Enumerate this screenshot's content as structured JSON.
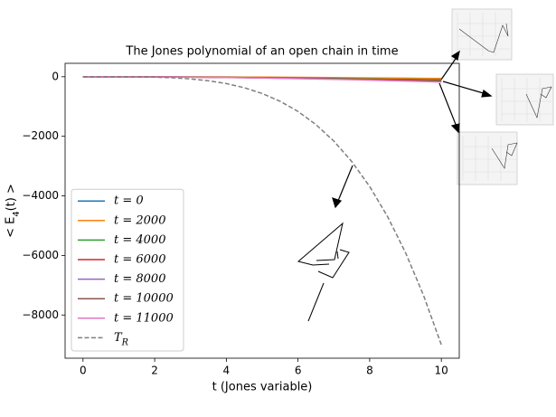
{
  "chart_data": {
    "type": "line",
    "title": "The Jones polynomial of an open chain in time",
    "x_label": "t (Jones variable)",
    "y_label": "< E_4(t) >",
    "x": [
      0,
      0.5,
      1,
      1.5,
      2,
      2.5,
      3,
      3.5,
      4,
      4.5,
      5,
      5.5,
      6,
      6.5,
      7,
      7.5,
      8,
      8.5,
      9,
      9.5,
      10
    ],
    "xlim": [
      -0.5,
      10.5
    ],
    "xticks": [
      0,
      2,
      4,
      6,
      8,
      10
    ],
    "ylim": [
      -9450,
      450
    ],
    "yticks": [
      0,
      {
        "value": -2000,
        "label": "−2000"
      },
      {
        "value": -4000,
        "label": "−4000"
      },
      {
        "value": -6000,
        "label": "−6000"
      },
      {
        "value": -8000,
        "label": "−8000"
      }
    ],
    "legend": "lower left",
    "series": [
      {
        "name": "t = 0",
        "color": "#1f77b4",
        "dashed": false,
        "values": [
          0,
          0,
          -1,
          -2,
          -4,
          -6,
          -9,
          -12,
          -16,
          -20,
          -25,
          -30,
          -36,
          -42,
          -49,
          -56,
          -64,
          -72,
          -81,
          -90,
          -100
        ]
      },
      {
        "name": "t = 2000",
        "color": "#ff7f0e",
        "dashed": false,
        "values": [
          0,
          0,
          -1,
          -1,
          -2,
          -4,
          -5,
          -7,
          -10,
          -12,
          -15,
          -18,
          -22,
          -25,
          -29,
          -34,
          -38,
          -43,
          -49,
          -54,
          -60
        ]
      },
      {
        "name": "t = 4000",
        "color": "#2ca02c",
        "dashed": false,
        "values": [
          0,
          0,
          -1,
          -3,
          -5,
          -8,
          -11,
          -15,
          -19,
          -24,
          -30,
          -36,
          -43,
          -51,
          -59,
          -68,
          -77,
          -87,
          -97,
          -108,
          -120
        ]
      },
      {
        "name": "t = 6000",
        "color": "#d62728",
        "dashed": false,
        "values": [
          0,
          0,
          -1,
          -3,
          -6,
          -9,
          -13,
          -17,
          -22,
          -28,
          -35,
          -42,
          -50,
          -59,
          -69,
          -79,
          -90,
          -101,
          -113,
          -126,
          -140
        ]
      },
      {
        "name": "t = 8000",
        "color": "#9467bd",
        "dashed": false,
        "values": [
          0,
          0,
          -2,
          -4,
          -6,
          -10,
          -14,
          -20,
          -26,
          -32,
          -40,
          -48,
          -58,
          -68,
          -78,
          -90,
          -102,
          -116,
          -130,
          -144,
          -160
        ]
      },
      {
        "name": "t = 10000",
        "color": "#8c564b",
        "dashed": false,
        "values": [
          0,
          0,
          -2,
          -3,
          -6,
          -9,
          -14,
          -18,
          -24,
          -30,
          -38,
          -45,
          -54,
          -63,
          -74,
          -84,
          -96,
          -108,
          -122,
          -135,
          -150
        ]
      },
      {
        "name": "t = 11000",
        "color": "#e377c2",
        "dashed": false,
        "values": [
          0,
          0,
          -2,
          -4,
          -7,
          -11,
          -16,
          -22,
          -29,
          -36,
          -45,
          -54,
          -65,
          -76,
          -88,
          -101,
          -115,
          -130,
          -146,
          -162,
          -180
        ]
      },
      {
        "name": "T_R",
        "color": "#7f7f7f",
        "dashed": true,
        "values": [
          0,
          0,
          -1,
          -5,
          -14,
          -35,
          -73,
          -135,
          -230,
          -369,
          -563,
          -824,
          -1166,
          -1607,
          -2161,
          -2848,
          -3686,
          -4698,
          -5905,
          -7331,
          -9000
        ]
      }
    ]
  }
}
